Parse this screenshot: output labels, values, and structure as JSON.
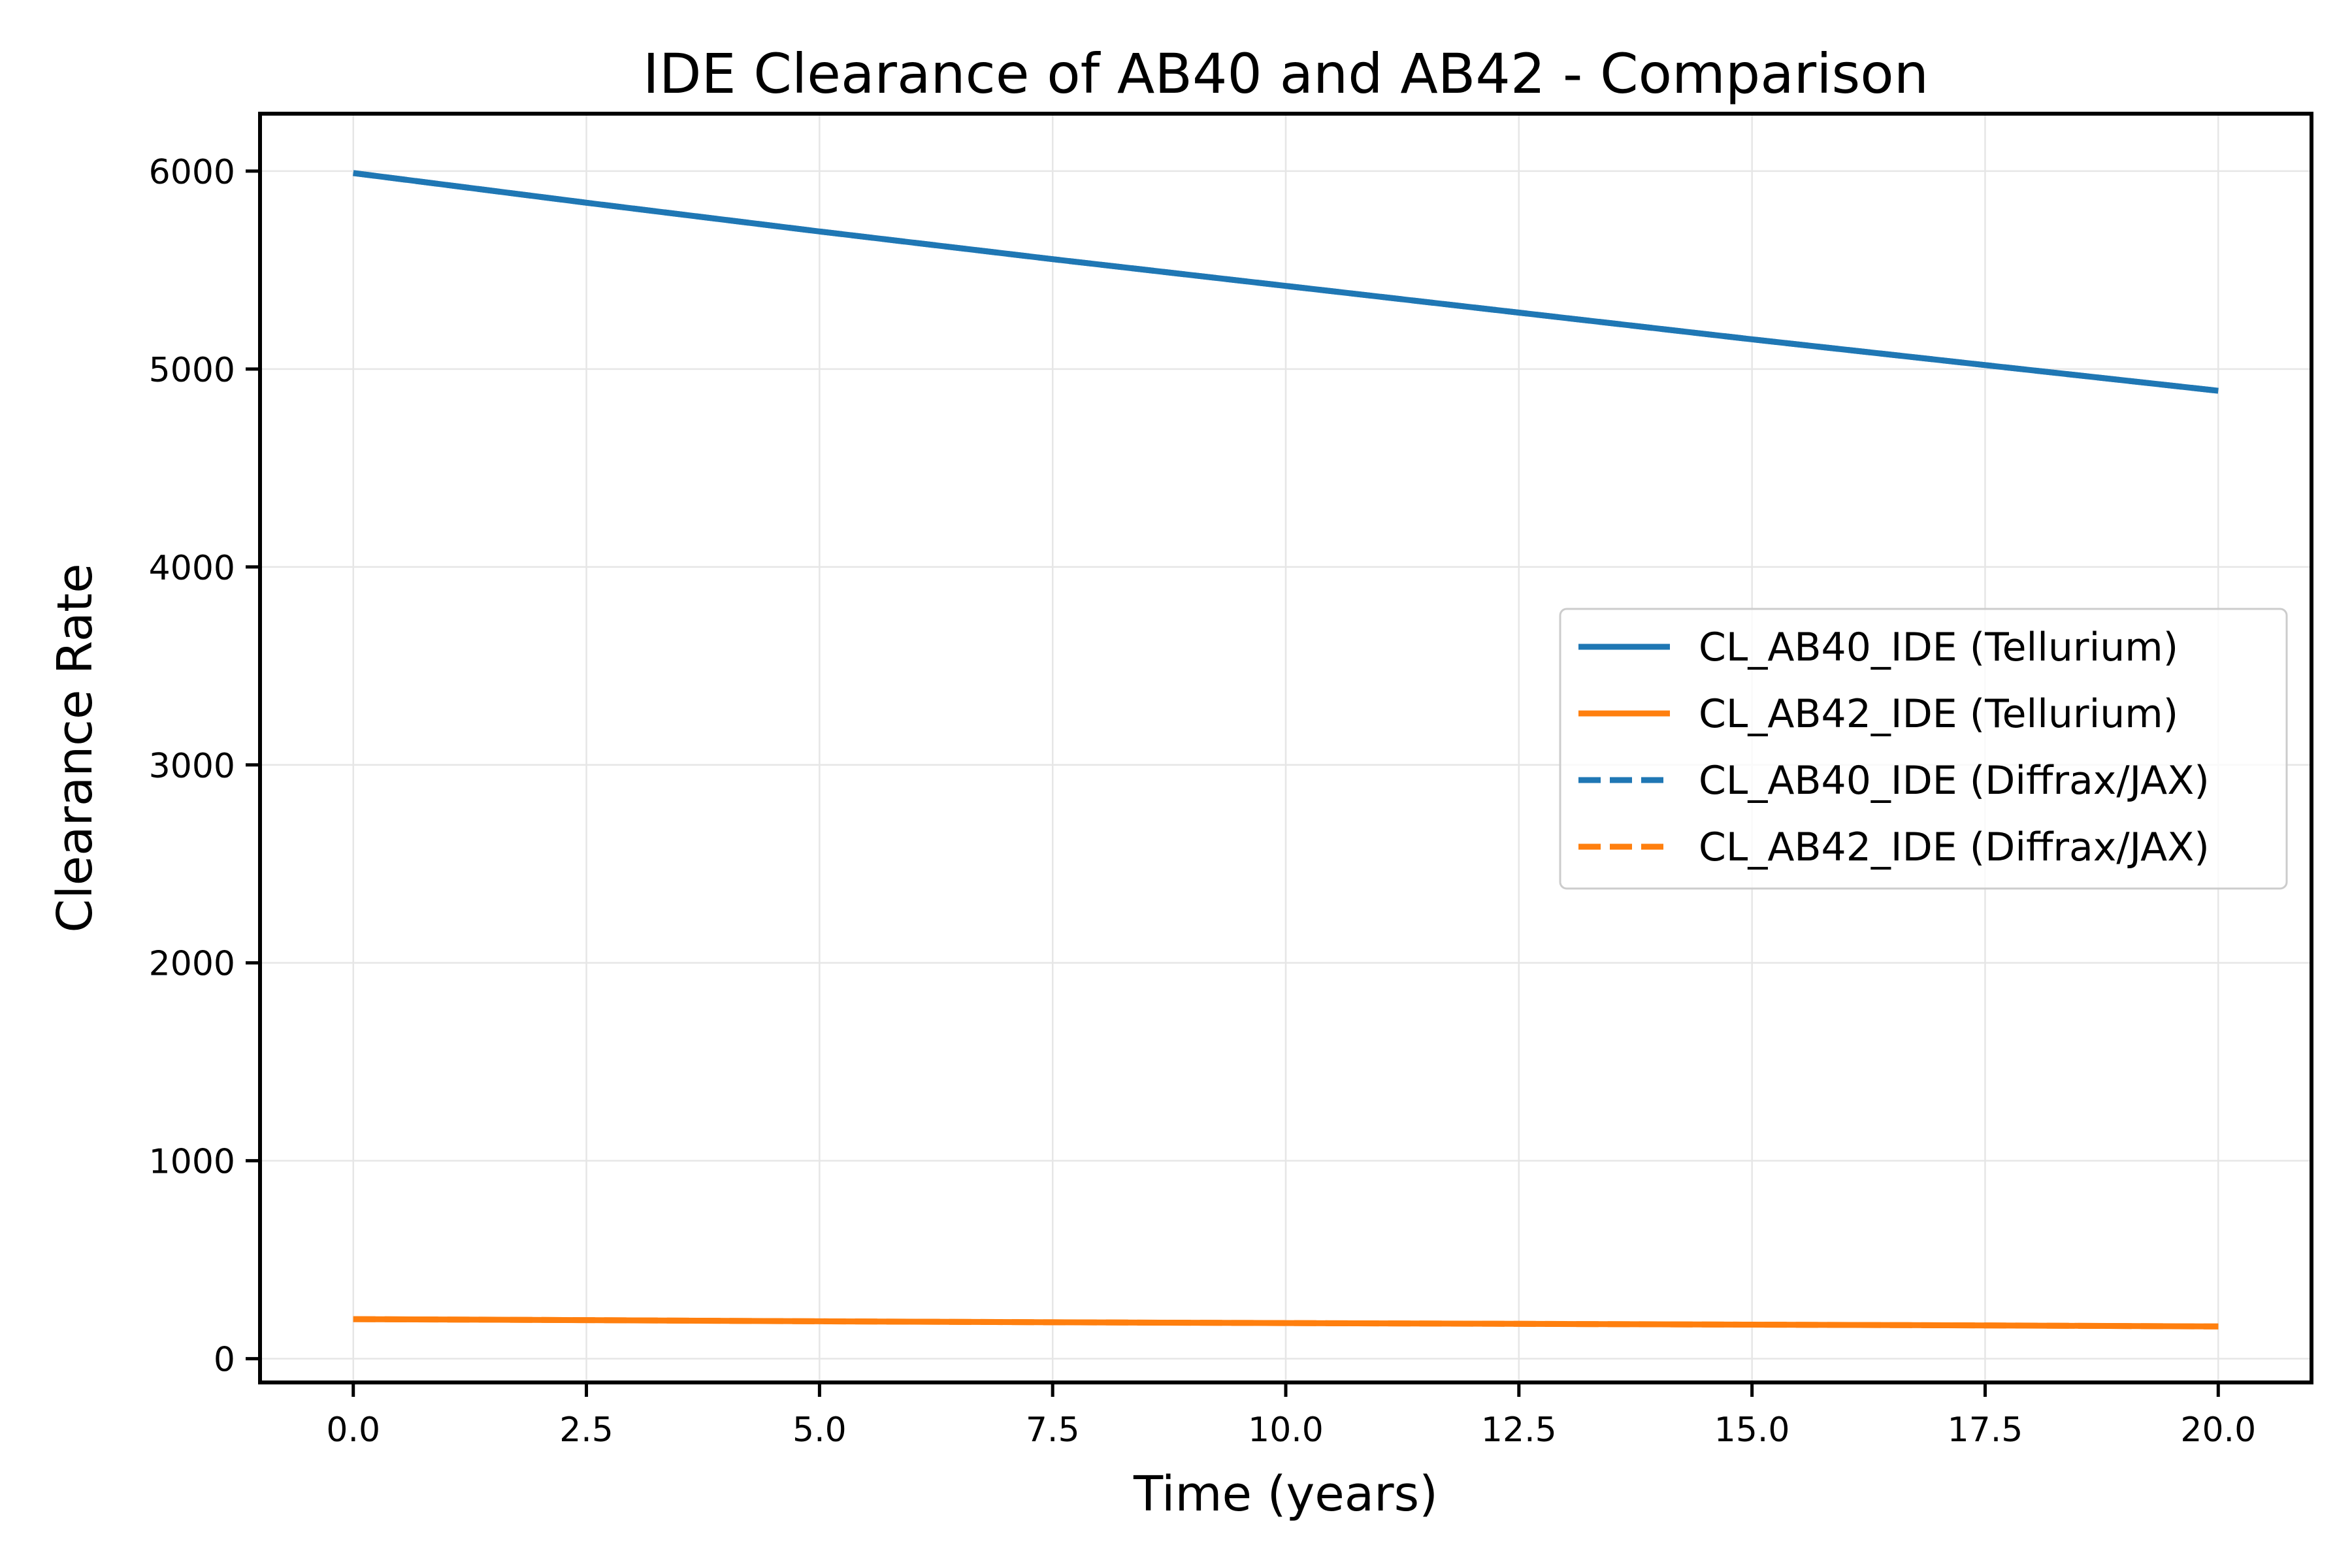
{
  "chart_data": {
    "type": "line",
    "title": "IDE Clearance of AB40 and AB42 - Comparison",
    "xlabel": "Time (years)",
    "ylabel": "Clearance Rate",
    "xlim": [
      -1.0,
      21.0
    ],
    "ylim": [
      -120,
      6290
    ],
    "x_ticks": [
      0.0,
      2.5,
      5.0,
      7.5,
      10.0,
      12.5,
      15.0,
      17.5,
      20.0
    ],
    "x_tick_labels": [
      "0.0",
      "2.5",
      "5.0",
      "7.5",
      "10.0",
      "12.5",
      "15.0",
      "17.5",
      "20.0"
    ],
    "y_ticks": [
      0,
      1000,
      2000,
      3000,
      4000,
      5000,
      6000
    ],
    "y_tick_labels": [
      "0",
      "1000",
      "2000",
      "3000",
      "4000",
      "5000",
      "6000"
    ],
    "grid": true,
    "legend_position": "center-right",
    "x": [
      0,
      2.5,
      5,
      7.5,
      10,
      12.5,
      15,
      17.5,
      20
    ],
    "series": [
      {
        "name": "CL_AB40_IDE (Tellurium)",
        "color": "#1f77b4",
        "dash": "solid",
        "values": [
          5990,
          5840,
          5695,
          5555,
          5420,
          5285,
          5150,
          5020,
          4890
        ]
      },
      {
        "name": "CL_AB42_IDE (Tellurium)",
        "color": "#ff7f0e",
        "dash": "solid",
        "values": [
          200,
          195,
          189,
          184,
          180,
          176,
          172,
          168,
          163
        ]
      },
      {
        "name": "CL_AB40_IDE (Diffrax/JAX)",
        "color": "#1f77b4",
        "dash": "dashed",
        "values": [
          5990,
          5840,
          5695,
          5555,
          5420,
          5285,
          5150,
          5020,
          4890
        ]
      },
      {
        "name": "CL_AB42_IDE (Diffrax/JAX)",
        "color": "#ff7f0e",
        "dash": "dashed",
        "values": [
          200,
          195,
          189,
          184,
          180,
          176,
          172,
          168,
          163
        ]
      }
    ]
  }
}
